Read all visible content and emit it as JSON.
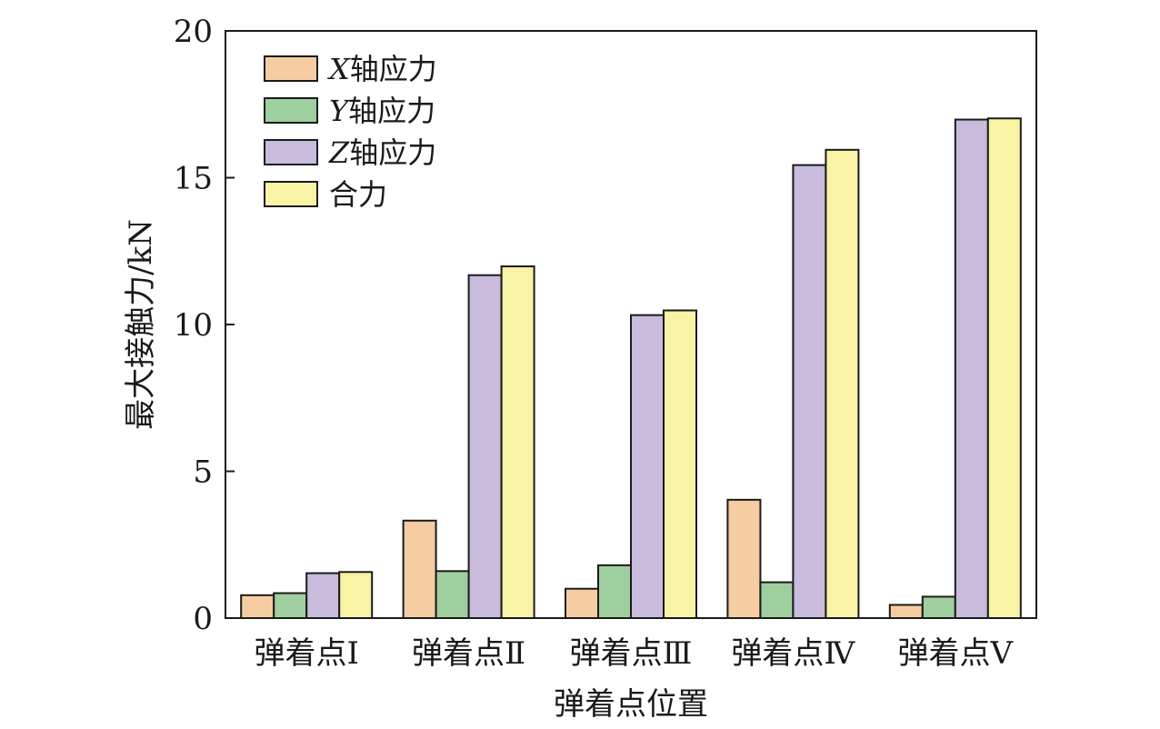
{
  "chart_data": {
    "type": "bar",
    "xlabel": "弹着点位置",
    "ylabel": "最大接触力/kN",
    "ylim": [
      0,
      20
    ],
    "yticks": [
      0,
      5,
      10,
      15,
      20
    ],
    "categories": [
      "弹着点Ⅰ",
      "弹着点Ⅱ",
      "弹着点Ⅲ",
      "弹着点Ⅳ",
      "弹着点Ⅴ"
    ],
    "series": [
      {
        "name_prefix": "X",
        "name_suffix": "轴应力",
        "color": "#f6cca3",
        "values": [
          0.78,
          3.32,
          1.0,
          4.03,
          0.45
        ]
      },
      {
        "name_prefix": "Y",
        "name_suffix": "轴应力",
        "color": "#9fcf9e",
        "values": [
          0.85,
          1.6,
          1.8,
          1.22,
          0.73
        ]
      },
      {
        "name_prefix": "Z",
        "name_suffix": "轴应力",
        "color": "#c8bbdc",
        "values": [
          1.53,
          11.68,
          10.32,
          15.43,
          16.98
        ]
      },
      {
        "name_prefix": "",
        "name_suffix": "合力",
        "color": "#f8f3a5",
        "values": [
          1.57,
          11.98,
          10.48,
          15.95,
          17.02
        ]
      }
    ],
    "legend_position": "top-left",
    "grid": false
  }
}
